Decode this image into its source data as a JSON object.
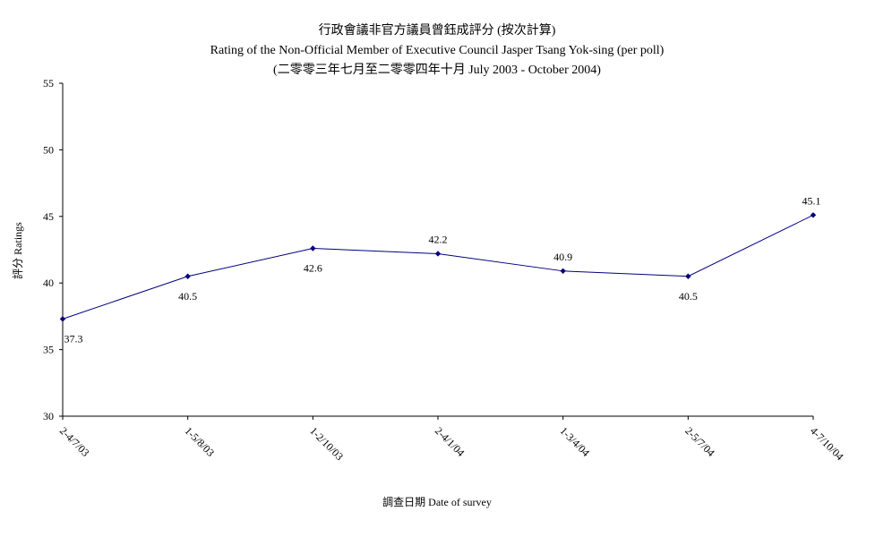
{
  "chart_data": {
    "type": "line",
    "title": "行政會議非官方議員曾鈺成評分 (按次計算)",
    "subtitle": "Rating of the Non-Official Member of Executive Council Jasper Tsang Yok-sing  (per poll)",
    "subtitle2": "(二零零三年七月至二零零四年十月 July 2003 - October 2004)",
    "xlabel": "調查日期 Date of survey",
    "ylabel": "評分 Ratings",
    "categories": [
      "2-4/7/03",
      "1-5/8/03",
      "1-2/10/03",
      "2-4/1/04",
      "1-3/4/04",
      "2-5/7/04",
      "4-7/10/04"
    ],
    "values": [
      37.3,
      40.5,
      42.6,
      42.2,
      40.9,
      40.5,
      45.1
    ],
    "value_labels": [
      "37.3",
      "40.5",
      "42.6",
      "42.2",
      "40.9",
      "40.5",
      "45.1"
    ],
    "label_positions": [
      "below",
      "below",
      "below",
      "above",
      "above",
      "below",
      "above"
    ],
    "ylim": [
      30,
      55
    ],
    "yticks": [
      "30",
      "35",
      "40",
      "45",
      "50",
      "55"
    ],
    "grid": false,
    "legend": "none",
    "line_color": "#000080",
    "marker_color": "#000080"
  }
}
